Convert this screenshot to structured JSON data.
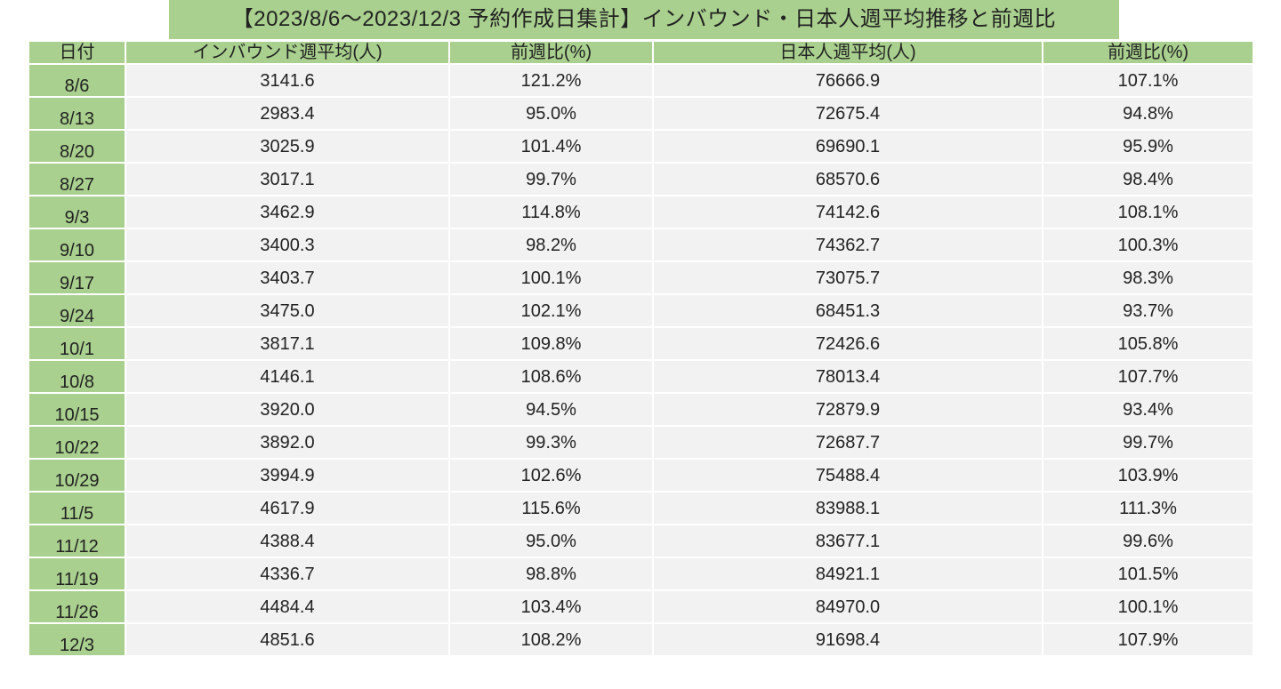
{
  "title": "【2023/8/6～2023/12/3 予約作成日集計】インバウンド・日本人週平均推移と前週比",
  "headers": [
    "日付",
    "インバウンド週平均(人)",
    "前週比(%)",
    "日本人週平均(人)",
    "前週比(%)"
  ],
  "rows": [
    [
      "8/6",
      "3141.6",
      "121.2%",
      "76666.9",
      "107.1%"
    ],
    [
      "8/13",
      "2983.4",
      "95.0%",
      "72675.4",
      "94.8%"
    ],
    [
      "8/20",
      "3025.9",
      "101.4%",
      "69690.1",
      "95.9%"
    ],
    [
      "8/27",
      "3017.1",
      "99.7%",
      "68570.6",
      "98.4%"
    ],
    [
      "9/3",
      "3462.9",
      "114.8%",
      "74142.6",
      "108.1%"
    ],
    [
      "9/10",
      "3400.3",
      "98.2%",
      "74362.7",
      "100.3%"
    ],
    [
      "9/17",
      "3403.7",
      "100.1%",
      "73075.7",
      "98.3%"
    ],
    [
      "9/24",
      "3475.0",
      "102.1%",
      "68451.3",
      "93.7%"
    ],
    [
      "10/1",
      "3817.1",
      "109.8%",
      "72426.6",
      "105.8%"
    ],
    [
      "10/8",
      "4146.1",
      "108.6%",
      "78013.4",
      "107.7%"
    ],
    [
      "10/15",
      "3920.0",
      "94.5%",
      "72879.9",
      "93.4%"
    ],
    [
      "10/22",
      "3892.0",
      "99.3%",
      "72687.7",
      "99.7%"
    ],
    [
      "10/29",
      "3994.9",
      "102.6%",
      "75488.4",
      "103.9%"
    ],
    [
      "11/5",
      "4617.9",
      "115.6%",
      "83988.1",
      "111.3%"
    ],
    [
      "11/12",
      "4388.4",
      "95.0%",
      "83677.1",
      "99.6%"
    ],
    [
      "11/19",
      "4336.7",
      "98.8%",
      "84921.1",
      "101.5%"
    ],
    [
      "11/26",
      "4484.4",
      "103.4%",
      "84970.0",
      "100.1%"
    ],
    [
      "12/3",
      "4851.6",
      "108.2%",
      "91698.4",
      "107.9%"
    ]
  ],
  "colors": {
    "header_green": "#a9d08e",
    "cell_gray": "#f2f2f2"
  }
}
